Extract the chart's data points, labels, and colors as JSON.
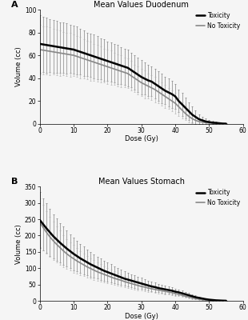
{
  "title_A": "Mean Values Duodenum",
  "title_B": "Mean Values Stomach",
  "xlabel": "Dose (Gy)",
  "ylabel_A": "Volume (cc)",
  "ylabel_B": "Volume (cc)",
  "label_toxicity": "Toxicity",
  "label_no_toxicity": "No Toxicity",
  "panel_A": "A",
  "panel_B": "B",
  "xlim": [
    0,
    60
  ],
  "ylim_A": [
    0,
    100
  ],
  "ylim_B": [
    0,
    350
  ],
  "yticks_A": [
    0,
    20,
    40,
    60,
    80,
    100
  ],
  "yticks_B": [
    0,
    50,
    100,
    150,
    200,
    250,
    300,
    350
  ],
  "xticks": [
    0,
    10,
    20,
    30,
    40,
    50,
    60
  ],
  "dose_points": [
    0,
    1,
    2,
    3,
    4,
    5,
    6,
    7,
    8,
    9,
    10,
    11,
    12,
    13,
    14,
    15,
    16,
    17,
    18,
    19,
    20,
    21,
    22,
    23,
    24,
    25,
    26,
    27,
    28,
    29,
    30,
    31,
    32,
    33,
    34,
    35,
    36,
    37,
    38,
    39,
    40,
    41,
    42,
    43,
    44,
    45,
    46,
    47,
    48,
    49,
    50,
    51,
    52,
    53,
    54,
    55
  ],
  "duodenum_toxicity_mean": [
    70,
    69.5,
    69,
    68.5,
    68,
    67.5,
    67,
    66.5,
    66,
    65.5,
    65,
    64,
    63,
    62,
    61,
    60,
    59,
    58,
    57,
    56,
    55,
    54,
    53,
    52,
    51,
    50,
    49,
    47,
    45,
    43,
    41,
    39.5,
    38,
    37,
    35,
    33,
    31,
    29,
    27.5,
    26,
    24,
    20,
    17,
    14,
    11,
    8,
    6,
    4,
    3,
    2,
    1.5,
    1,
    0.8,
    0.5,
    0.2,
    0.1
  ],
  "duodenum_notox_mean": [
    65,
    64.5,
    64,
    63.5,
    63,
    62.5,
    62,
    61.5,
    61,
    60.5,
    60,
    59,
    58,
    57,
    56,
    55,
    54,
    53,
    52,
    51,
    50,
    49,
    48,
    47,
    46,
    45,
    44,
    42,
    40,
    38,
    36,
    34.5,
    33,
    31.5,
    30,
    28,
    26,
    24,
    22,
    20,
    18,
    15,
    12,
    9,
    6.5,
    4.5,
    3,
    2,
    1.5,
    1,
    0.8,
    0.5,
    0.3,
    0.1,
    0.05,
    0.01
  ],
  "duodenum_toxicity_sd": [
    25,
    24,
    24,
    23,
    23,
    23,
    22,
    22,
    22,
    21,
    21,
    21,
    20,
    20,
    19,
    19,
    19,
    19,
    18,
    18,
    17,
    17,
    17,
    17,
    16,
    16,
    16,
    15,
    15,
    15,
    15,
    14,
    14,
    13,
    13,
    13,
    13,
    12,
    12,
    12,
    11,
    10,
    10,
    9,
    8,
    7,
    6,
    4,
    3,
    2.5,
    2,
    1.5,
    1,
    0.8,
    0.5,
    0.3
  ],
  "duodenum_notox_sd": [
    22,
    21,
    21,
    21,
    20,
    20,
    20,
    19,
    19,
    19,
    18,
    18,
    18,
    17,
    17,
    17,
    16,
    16,
    16,
    15,
    15,
    15,
    14,
    14,
    14,
    13,
    13,
    13,
    12,
    12,
    12,
    12,
    11,
    11,
    11,
    10,
    10,
    10,
    9,
    9,
    9,
    8,
    7,
    6,
    5,
    4,
    3,
    2,
    1.5,
    1.2,
    1,
    0.8,
    0.5,
    0.3,
    0.1,
    0.05
  ],
  "stomach_toxicity_mean": [
    248,
    235,
    222,
    210,
    198,
    188,
    178,
    169,
    160,
    152,
    144,
    137,
    130,
    124,
    118,
    112,
    107,
    102,
    97,
    92,
    88,
    84,
    80,
    76,
    72,
    68,
    65,
    62,
    59,
    56,
    53,
    50,
    47,
    44,
    42,
    39,
    37,
    35,
    33,
    31,
    28,
    26,
    23,
    20,
    17,
    14,
    11,
    9,
    7,
    5,
    3.5,
    2.5,
    1.5,
    1,
    0.5,
    0.2
  ],
  "stomach_notox_mean": [
    240,
    225,
    210,
    196,
    184,
    173,
    163,
    153,
    144,
    136,
    129,
    122,
    116,
    110,
    104,
    99,
    94,
    89,
    85,
    81,
    77,
    73,
    69,
    66,
    63,
    59,
    56,
    53,
    50,
    47,
    44,
    42,
    39,
    37,
    35,
    33,
    31,
    29,
    27,
    25,
    22,
    20,
    17,
    14,
    12,
    9,
    7,
    5,
    3.5,
    2.5,
    1.8,
    1.2,
    0.8,
    0.4,
    0.2,
    0.05
  ],
  "stomach_toxicity_sd": [
    85,
    80,
    76,
    72,
    68,
    65,
    61,
    58,
    55,
    52,
    50,
    47,
    45,
    43,
    40,
    38,
    36,
    34,
    33,
    31,
    29,
    28,
    26,
    25,
    24,
    22,
    21,
    20,
    19,
    18,
    17,
    16,
    15,
    14,
    14,
    13,
    12,
    12,
    11,
    11,
    10,
    9,
    8,
    7,
    7,
    6,
    5,
    4,
    3.5,
    3,
    2.5,
    2,
    1.5,
    1,
    0.7,
    0.4
  ],
  "stomach_notox_sd": [
    75,
    70,
    65,
    62,
    58,
    55,
    52,
    49,
    46,
    44,
    42,
    39,
    37,
    35,
    33,
    31,
    30,
    28,
    27,
    25,
    24,
    22,
    21,
    20,
    19,
    18,
    17,
    16,
    15,
    14,
    13,
    13,
    12,
    11,
    11,
    10,
    9,
    9,
    8,
    8,
    7,
    6,
    5,
    5,
    4,
    3.5,
    3,
    2.5,
    2,
    1.5,
    1.2,
    0.9,
    0.6,
    0.4,
    0.2,
    0.08
  ],
  "color_toxicity": "#000000",
  "color_notoxicity": "#888888",
  "error_color_toxicity": "#666666",
  "error_color_notoxicity": "#aaaaaa",
  "background_color": "#f5f5f5",
  "title_fontsize": 7,
  "label_fontsize": 6,
  "tick_fontsize": 5.5,
  "legend_fontsize": 5.5,
  "panel_label_fontsize": 8
}
